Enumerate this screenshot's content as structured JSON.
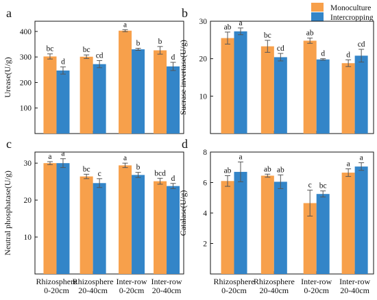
{
  "legend": {
    "items": [
      {
        "label": "Monoculture",
        "color": "#F7A04B"
      },
      {
        "label": "Intercropping",
        "color": "#3385C8"
      }
    ]
  },
  "colors": {
    "monoculture": "#F7A04B",
    "intercropping": "#3385C8",
    "axis": "#111111"
  },
  "chart_data": [
    {
      "type": "bar",
      "panel": "a",
      "ylabel": "Urease(U/g)",
      "ylim": [
        0,
        440
      ],
      "yticks": [
        100,
        200,
        300,
        400
      ],
      "categories": [
        [
          "Rhizosphere",
          "0-20cm"
        ],
        [
          "Rhizosphere",
          "20-40cm"
        ],
        [
          "Inter-row",
          "0-20cm"
        ],
        [
          "Inter-row",
          "20-40cm"
        ]
      ],
      "show_category_labels": false,
      "series": [
        {
          "name": "Monoculture",
          "values": [
            302,
            301,
            403,
            326
          ],
          "errors": [
            10,
            7,
            4,
            15
          ],
          "labels": [
            "bc",
            "bc",
            "a",
            "b"
          ]
        },
        {
          "name": "Intercropping",
          "values": [
            247,
            272,
            330,
            263
          ],
          "errors": [
            14,
            14,
            4,
            16
          ],
          "labels": [
            "d",
            "cd",
            "b",
            "d"
          ]
        }
      ]
    },
    {
      "type": "bar",
      "panel": "b",
      "ylabel": "Sucrase invertase(U/g)",
      "ylim": [
        0,
        30
      ],
      "yticks": [
        10,
        20,
        30
      ],
      "categories": [
        [
          "Rhizosphere",
          "0-20cm"
        ],
        [
          "Rhizosphere",
          "20-40cm"
        ],
        [
          "Inter-row",
          "0-20cm"
        ],
        [
          "Inter-row",
          "20-40cm"
        ]
      ],
      "show_category_labels": false,
      "series": [
        {
          "name": "Monoculture",
          "values": [
            25.5,
            23.3,
            24.8,
            18.8
          ],
          "errors": [
            1.6,
            1.6,
            0.7,
            0.9
          ],
          "labels": [
            "ab",
            "bc",
            "ab",
            "d"
          ]
        },
        {
          "name": "Intercropping",
          "values": [
            27.3,
            20.4,
            19.8,
            20.8
          ],
          "errors": [
            0.9,
            1.0,
            0.2,
            1.7
          ],
          "labels": [
            "a",
            "cd",
            "d",
            "cd"
          ]
        }
      ]
    },
    {
      "type": "bar",
      "panel": "c",
      "ylabel": "Neutral phosphatase(U/g)",
      "ylim": [
        0,
        33
      ],
      "yticks": [
        10,
        20,
        30
      ],
      "categories": [
        [
          "Rhizosphere",
          "0-20cm"
        ],
        [
          "Rhizosphere",
          "20-40cm"
        ],
        [
          "Inter-row",
          "0-20cm"
        ],
        [
          "Inter-row",
          "20-40cm"
        ]
      ],
      "show_category_labels": true,
      "series": [
        {
          "name": "Monoculture",
          "values": [
            30.0,
            26.4,
            29.4,
            25.1
          ],
          "errors": [
            0.4,
            0.6,
            0.6,
            0.8
          ],
          "labels": [
            "a",
            "bc",
            "a",
            "bcd"
          ]
        },
        {
          "name": "Intercropping",
          "values": [
            30.0,
            24.6,
            26.8,
            23.8
          ],
          "errors": [
            1.2,
            1.2,
            0.7,
            0.7
          ],
          "labels": [
            "a",
            "c",
            "b",
            "d"
          ]
        }
      ]
    },
    {
      "type": "bar",
      "panel": "d",
      "ylabel": "Catalase(U/g)",
      "ylim": [
        0,
        8
      ],
      "yticks": [
        2,
        4,
        6,
        8
      ],
      "categories": [
        [
          "Rhizosphere",
          "0-20cm"
        ],
        [
          "Rhizosphere",
          "20-40cm"
        ],
        [
          "Inter-row",
          "0-20cm"
        ],
        [
          "Inter-row",
          "20-40cm"
        ]
      ],
      "show_category_labels": true,
      "series": [
        {
          "name": "Monoculture",
          "values": [
            6.1,
            6.45,
            4.65,
            6.65
          ],
          "errors": [
            0.35,
            0.1,
            0.85,
            0.25
          ],
          "labels": [
            "ab",
            "ab",
            "c",
            "a"
          ]
        },
        {
          "name": "Intercropping",
          "values": [
            6.7,
            6.05,
            5.25,
            7.05
          ],
          "errors": [
            0.65,
            0.45,
            0.2,
            0.25
          ],
          "labels": [
            "a",
            "ab",
            "bc",
            "a"
          ]
        }
      ]
    }
  ]
}
